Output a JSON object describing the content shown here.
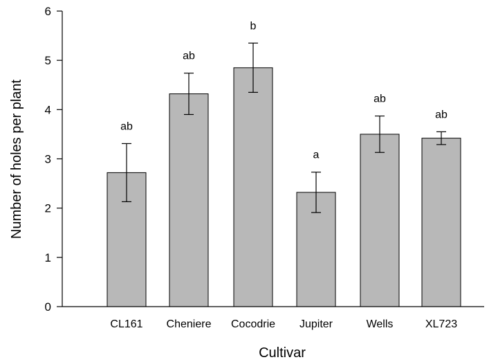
{
  "chart_data": {
    "type": "bar",
    "title": "",
    "xlabel": "Cultivar",
    "ylabel": "Number of holes per plant",
    "ylim": [
      0,
      6
    ],
    "yticks": [
      "0",
      "1",
      "2",
      "3",
      "4",
      "5",
      "6"
    ],
    "grid": false,
    "categories": [
      "CL161",
      "Cheniere",
      "Cocodrie",
      "Jupiter",
      "Wells",
      "XL723"
    ],
    "values": [
      2.72,
      4.32,
      4.85,
      2.32,
      3.5,
      3.42
    ],
    "error": [
      0.59,
      0.42,
      0.5,
      0.41,
      0.37,
      0.13
    ],
    "significance_labels": [
      "ab",
      "ab",
      "b",
      "a",
      "ab",
      "ab"
    ],
    "colors": {
      "bar_fill": "#b8b8b8",
      "bar_stroke": "#000000"
    }
  }
}
